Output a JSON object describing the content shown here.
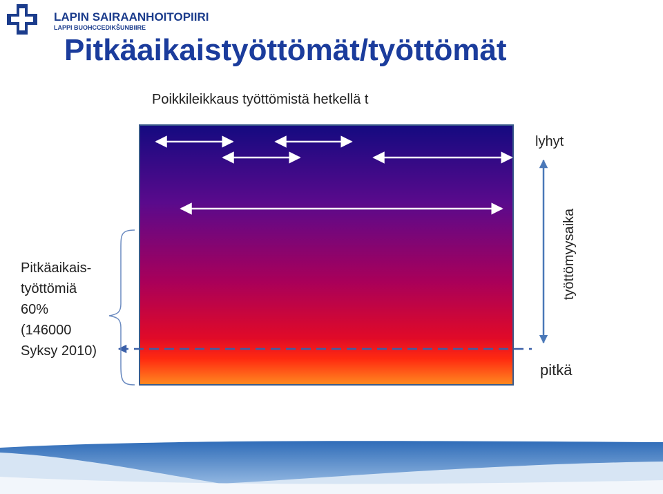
{
  "logo": {
    "name": "LAPIN SAIRAANHOITOPIIRI",
    "subname": "LAPPI BUOHCCEDIKŠUNBIIRE"
  },
  "title": "Pitkäaikaistyöttömät/työttömät",
  "subtitle": "Poikkileikkaus työttömistä hetkellä t",
  "left_label": [
    "Pitkäaikais-",
    "työttömiä",
    "60%",
    "(146000",
    "Syksy 2010)"
  ],
  "axis": {
    "top": "lyhyt",
    "bottom": "pitkä",
    "label": "työttömyysaika"
  }
}
